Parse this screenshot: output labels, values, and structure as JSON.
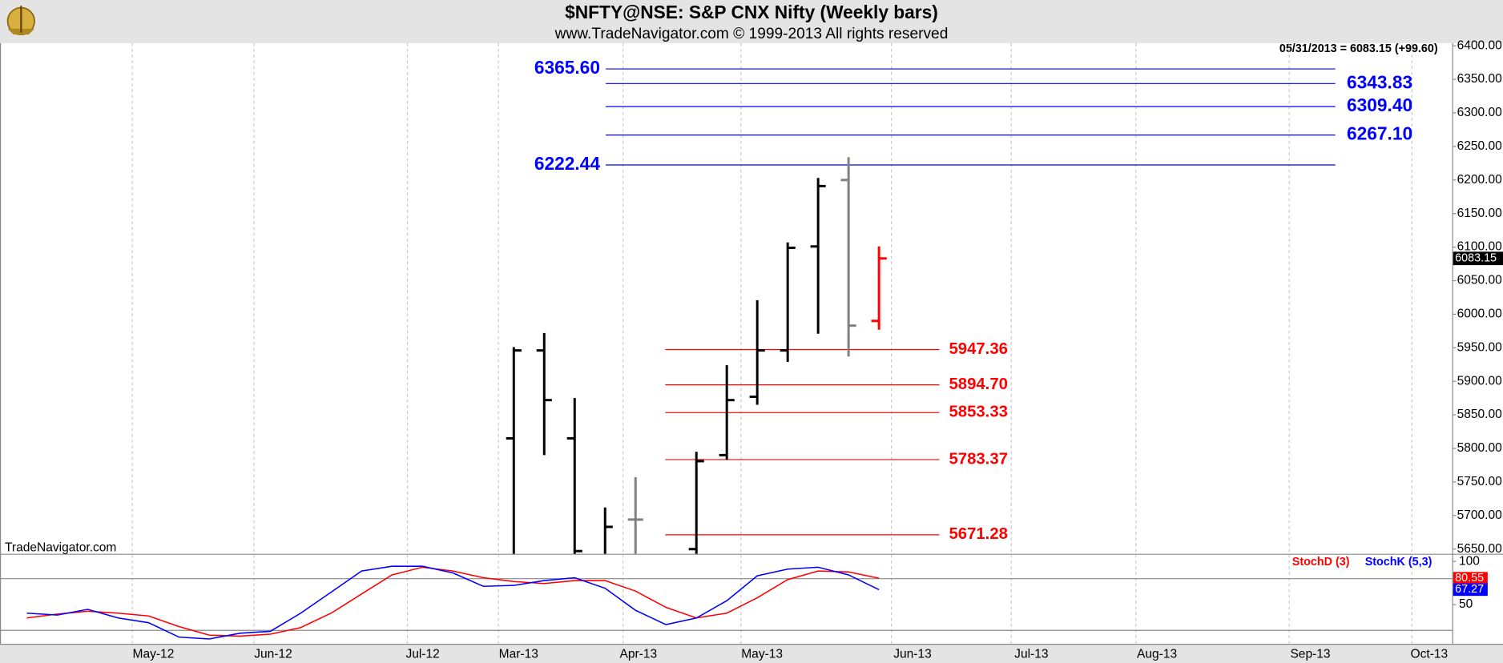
{
  "header": {
    "title": "$NFTY@NSE:  S&P CNX Nifty  (Weekly bars)",
    "subtitle": "www.TradeNavigator.com © 1999-2013 All rights reserved",
    "last_quote": "05/31/2013 = 6083.15 (+99.60)",
    "watermark": "TradeNavigator.com"
  },
  "chart_data": [
    {
      "type": "ohlc",
      "x_labels": [
        "May-12",
        "Jun-12",
        "Jul-12",
        "Mar-13",
        "Apr-13",
        "May-13",
        "Jun-13",
        "Jul-13",
        "Aug-13",
        "Sep-13",
        "Oct-13"
      ],
      "open": [
        5815,
        5946,
        5815,
        5640,
        5694,
        null,
        5650,
        5790,
        5877,
        5946,
        6101,
        6200,
        5990
      ],
      "high": [
        5951,
        5972,
        5875,
        5712,
        5757,
        null,
        5795,
        5924,
        6021,
        6107,
        6203,
        6234,
        6101
      ],
      "low": [
        5620,
        5790,
        5620,
        5620,
        5620,
        null,
        5620,
        5783,
        5865,
        5929,
        5971,
        5937,
        5977
      ],
      "close": [
        5946,
        5872,
        5647,
        5683,
        5694,
        null,
        5781,
        5872,
        5946,
        6099,
        6191,
        5983,
        6083.15
      ],
      "colors": [
        "#000000",
        "#000000",
        "#000000",
        "#000000",
        "#808080",
        null,
        "#000000",
        "#000000",
        "#000000",
        "#000000",
        "#000000",
        "#808080",
        "#ff0000"
      ],
      "ylim": [
        5643,
        6404
      ],
      "yticks": [
        {
          "value": 5650,
          "label": "5650.00"
        },
        {
          "value": 5700,
          "label": "5700.00"
        },
        {
          "value": 5750,
          "label": "5750.00"
        },
        {
          "value": 5800,
          "label": "5800.00"
        },
        {
          "value": 5850,
          "label": "5850.00"
        },
        {
          "value": 5900,
          "label": "5900.00"
        },
        {
          "value": 5950,
          "label": "5950.00"
        },
        {
          "value": 6000,
          "label": "6000.00"
        },
        {
          "value": 6050,
          "label": "6050.00"
        },
        {
          "value": 6100,
          "label": "6100.00"
        },
        {
          "value": 6150,
          "label": "6150.00"
        },
        {
          "value": 6200,
          "label": "6200.00"
        },
        {
          "value": 6250,
          "label": "6250.00"
        },
        {
          "value": 6300,
          "label": "6300.00"
        },
        {
          "value": 6350,
          "label": "6350.00"
        },
        {
          "value": 6400,
          "label": "6400.00"
        }
      ],
      "last_price": 6083.15,
      "levels": [
        {
          "value": 6365.6,
          "label": "6365.60",
          "color": "#0000ff"
        },
        {
          "value": 6343.83,
          "label": "6343.83",
          "color": "#0000ff"
        },
        {
          "value": 6309.4,
          "label": "6309.40",
          "color": "#0000ff"
        },
        {
          "value": 6267.1,
          "label": "6267.10",
          "color": "#0000ff"
        },
        {
          "value": 6222.44,
          "label": "6222.44",
          "color": "#0000ff"
        },
        {
          "value": 5947.36,
          "label": "5947.36",
          "color": "#ff0000"
        },
        {
          "value": 5894.7,
          "label": "5894.70",
          "color": "#ff0000"
        },
        {
          "value": 5853.33,
          "label": "5853.33",
          "color": "#ff0000"
        },
        {
          "value": 5783.37,
          "label": "5783.37",
          "color": "#ff0000"
        },
        {
          "value": 5671.28,
          "label": "5671.28",
          "color": "#ff0000"
        }
      ]
    },
    {
      "type": "line",
      "series": [
        {
          "name": "StochD (3)",
          "color": "#ff0000",
          "values": [
            34.4,
            38.9,
            42.2,
            40,
            36.7,
            24.4,
            14.4,
            13.3,
            15.6,
            23.3,
            40,
            62.2,
            84.4,
            93.3,
            88.9,
            81.1,
            76.7,
            74.4,
            77.8,
            77.8,
            65.6,
            46.7,
            34.4,
            40,
            57.8,
            78.9,
            88.9,
            87.8,
            80.55
          ]
        },
        {
          "name": "StochK (5,3)",
          "color": "#0000ff",
          "values": [
            40,
            37.8,
            44.4,
            34.4,
            28.9,
            12.2,
            10,
            16.7,
            18.9,
            40,
            64.4,
            88.9,
            94.4,
            94.4,
            86.7,
            71.1,
            72.2,
            77.8,
            81.1,
            68.9,
            43.3,
            26.7,
            34.4,
            54.4,
            83.3,
            91.1,
            93.3,
            84.4,
            67.27
          ]
        }
      ],
      "ylim": [
        4.4,
        106.7
      ],
      "yticks": [
        50,
        100
      ],
      "levels": [
        20,
        80
      ]
    }
  ]
}
